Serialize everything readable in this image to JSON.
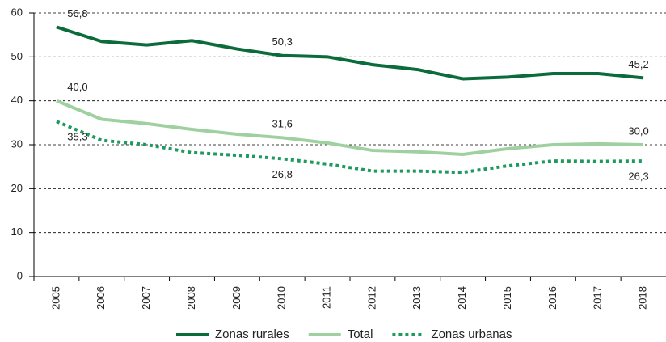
{
  "chart_data": {
    "type": "line",
    "categories": [
      "2005",
      "2006",
      "2007",
      "2008",
      "2009",
      "2010",
      "2011",
      "2012",
      "2013",
      "2014",
      "2015",
      "2016",
      "2017",
      "2018"
    ],
    "series": [
      {
        "name": "Zonas rurales",
        "color": "#0b6b3a",
        "style": "solid",
        "values": [
          56.8,
          53.5,
          52.7,
          53.7,
          51.8,
          50.3,
          50.0,
          48.2,
          47.1,
          45.0,
          45.4,
          46.2,
          46.2,
          45.2
        ],
        "value_labels": [
          "56,8",
          null,
          null,
          null,
          null,
          "50,3",
          null,
          null,
          null,
          null,
          null,
          null,
          null,
          "45,2"
        ]
      },
      {
        "name": "Total",
        "color": "#9fd09f",
        "style": "solid",
        "values": [
          40.0,
          35.8,
          34.8,
          33.5,
          32.4,
          31.6,
          30.4,
          28.7,
          28.4,
          27.8,
          29.1,
          30.0,
          30.2,
          30.0
        ],
        "value_labels": [
          "40,0",
          null,
          null,
          null,
          null,
          "31,6",
          null,
          null,
          null,
          null,
          null,
          null,
          null,
          "30,0"
        ]
      },
      {
        "name": "Zonas urbanas",
        "color": "#1f9a5f",
        "style": "dotted",
        "values": [
          35.3,
          31.0,
          30.0,
          28.2,
          27.6,
          26.8,
          25.6,
          24.0,
          24.0,
          23.7,
          25.2,
          26.3,
          26.2,
          26.3
        ],
        "value_labels": [
          "35,3",
          null,
          null,
          null,
          null,
          "26,8",
          null,
          null,
          null,
          null,
          null,
          null,
          null,
          "26,3"
        ]
      }
    ],
    "ylim": [
      0,
      60
    ],
    "yticks": [
      0,
      10,
      20,
      30,
      40,
      50,
      60
    ],
    "grid": true,
    "legend": "bottom"
  }
}
